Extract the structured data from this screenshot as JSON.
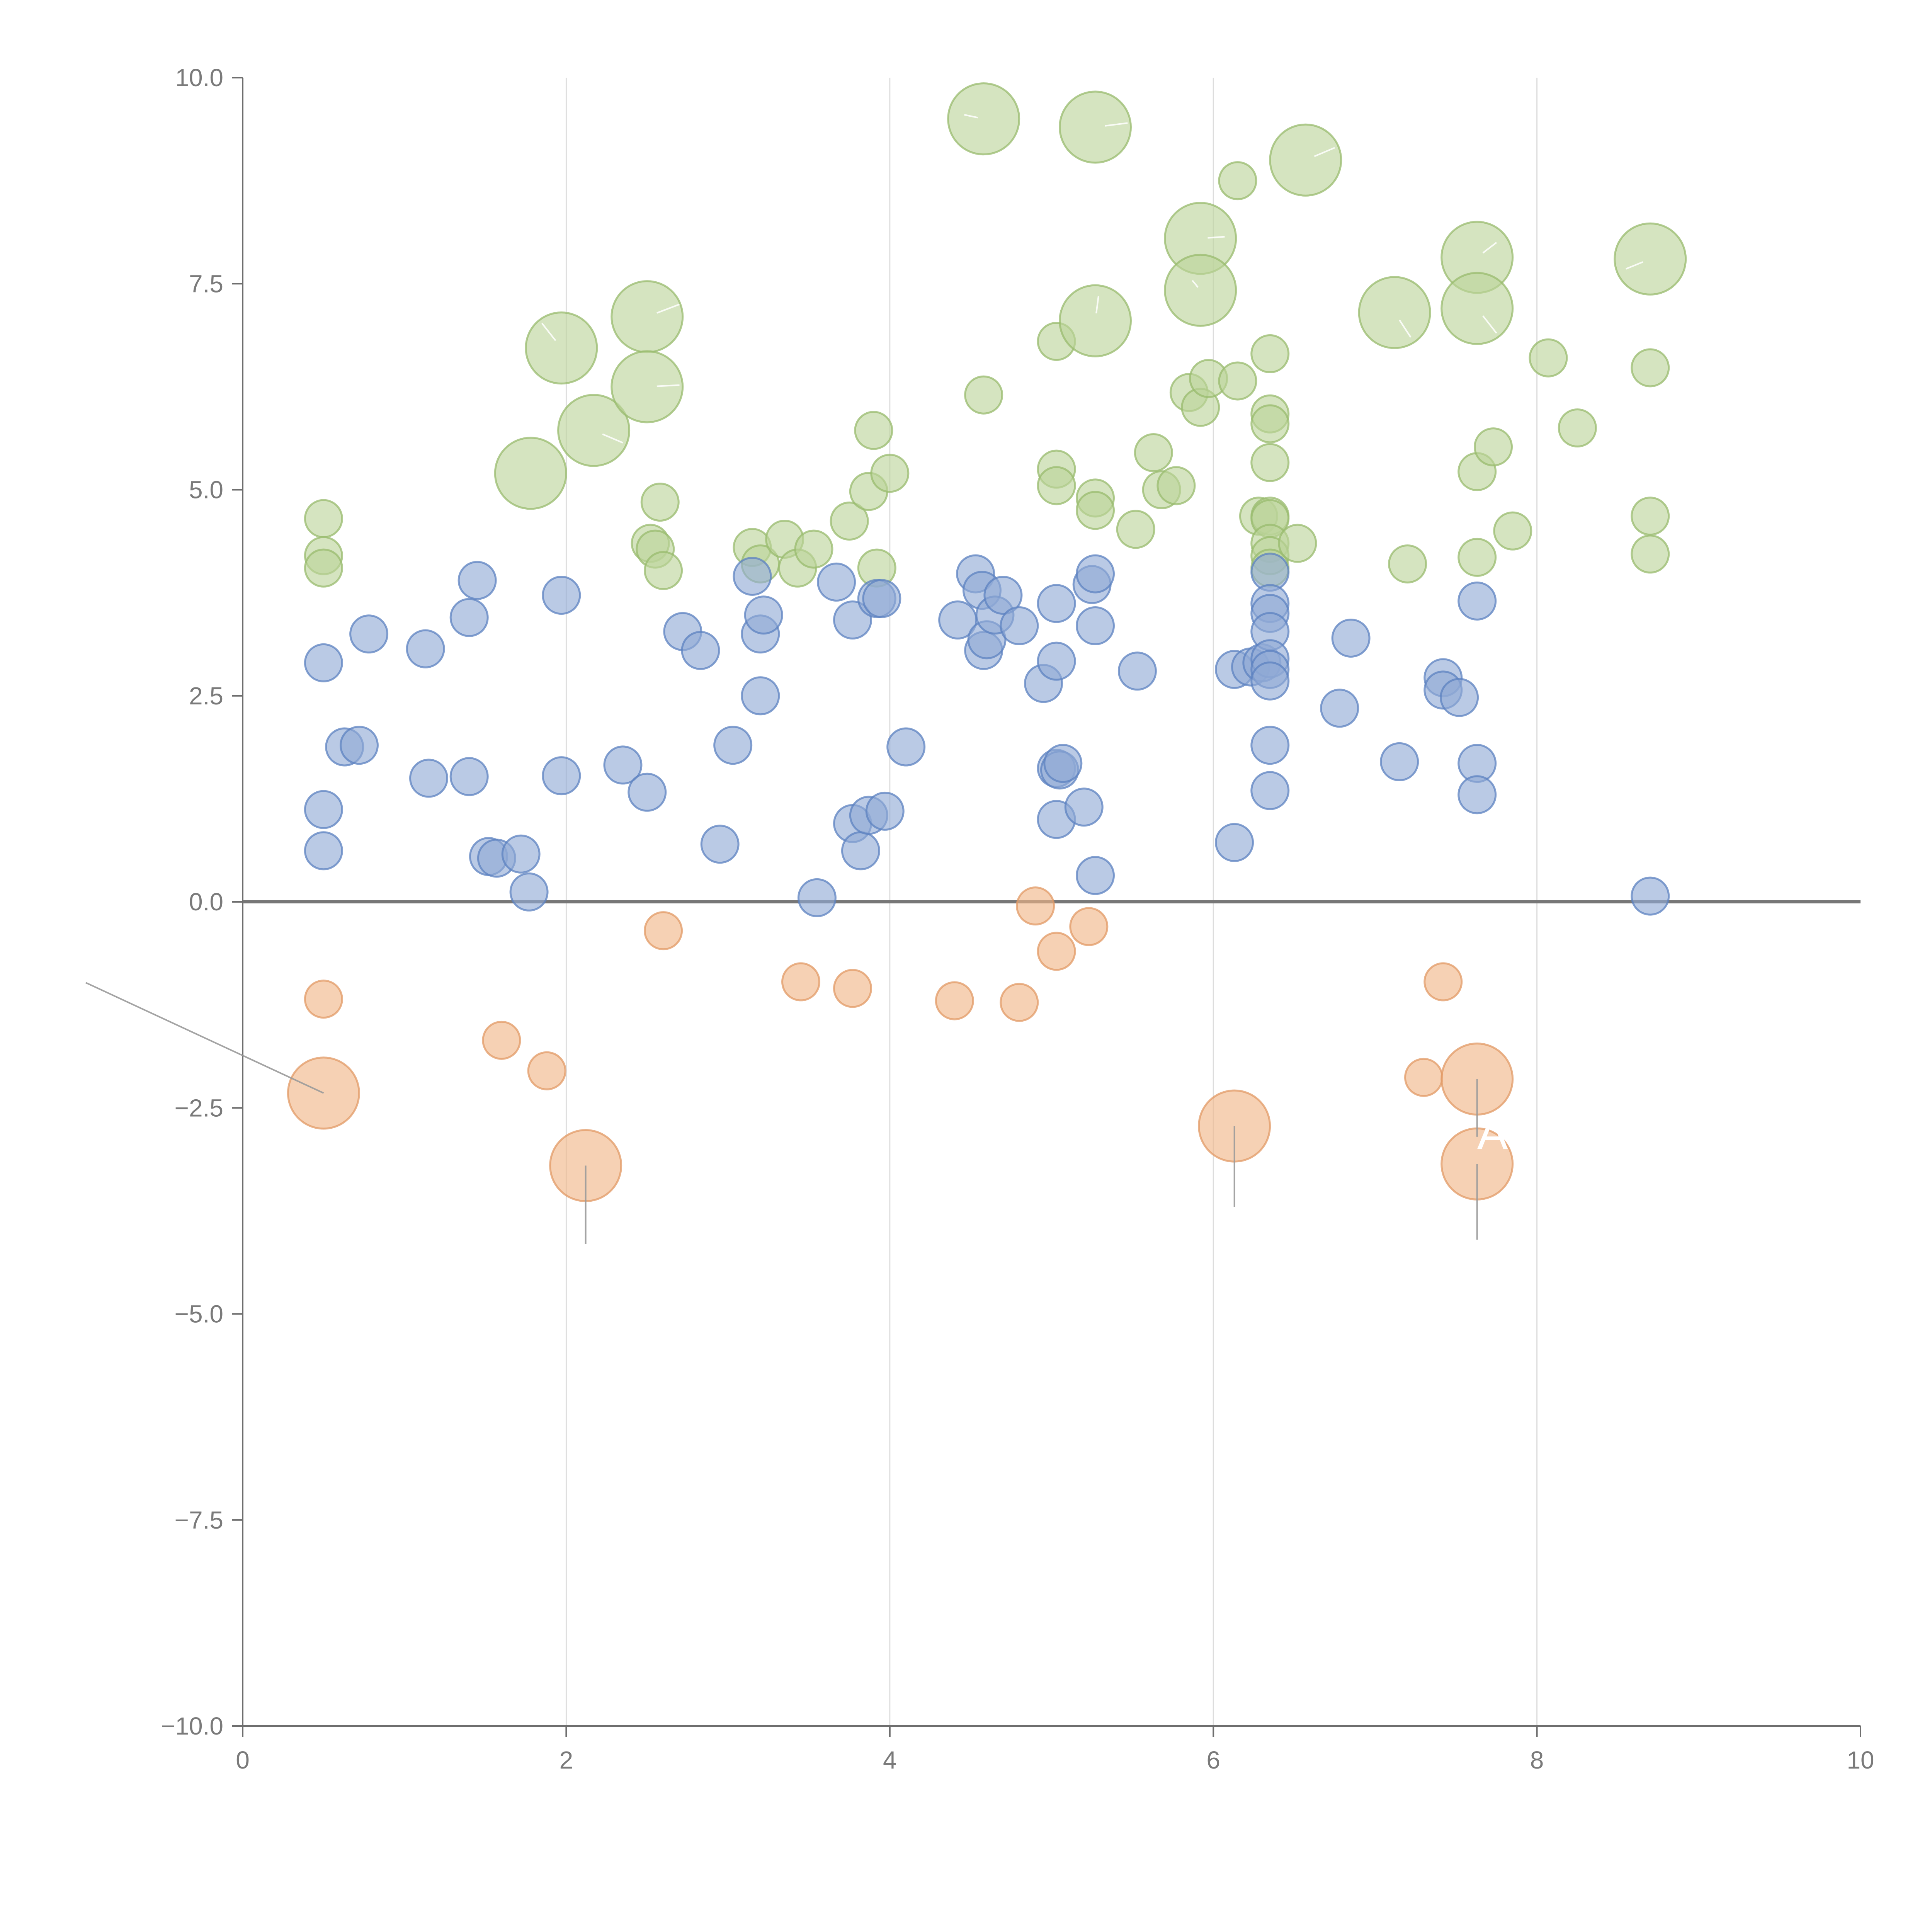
{
  "chart_data": {
    "type": "scatter",
    "title": "",
    "xlabel": "",
    "ylabel": "",
    "xlim": [
      0,
      10
    ],
    "ylim": [
      -10,
      10
    ],
    "x_ticks": [
      "0",
      "2",
      "4",
      "6",
      "8",
      "10"
    ],
    "y_ticks": [
      "10.0",
      "7.5",
      "5.0",
      "2.5",
      "0.0",
      "−2.5",
      "−5.0",
      "−7.5",
      "−10.0"
    ],
    "x_grid_at": [
      2,
      4,
      6,
      8
    ],
    "reference_line_y": 0,
    "legend": "none",
    "colors": {
      "green": "#bcd49a",
      "green_stroke": "#98bb6d",
      "blue": "#8fa9d5",
      "blue_stroke": "#5c81c0",
      "orange": "#f0b486",
      "orange_stroke": "#e19a66",
      "axis": "#6e6e6e",
      "grid": "#dddddd",
      "callout_light": "#ffffff",
      "callout_dark": "#9a9a9a"
    },
    "series": [
      {
        "color_key": "green",
        "points": [
          {
            "x": 0.5,
            "y": 4.65,
            "size": "s"
          },
          {
            "x": 0.5,
            "y": 4.2,
            "size": "s"
          },
          {
            "x": 0.5,
            "y": 4.05,
            "size": "s"
          },
          {
            "x": 1.78,
            "y": 5.2,
            "size": "l"
          },
          {
            "x": 1.97,
            "y": 6.72,
            "size": "l"
          },
          {
            "x": 2.17,
            "y": 5.72,
            "size": "l"
          },
          {
            "x": 2.5,
            "y": 7.1,
            "size": "l"
          },
          {
            "x": 2.5,
            "y": 6.25,
            "size": "l"
          },
          {
            "x": 2.52,
            "y": 4.35,
            "size": "s"
          },
          {
            "x": 2.55,
            "y": 4.28,
            "size": "s"
          },
          {
            "x": 2.58,
            "y": 4.85,
            "size": "s"
          },
          {
            "x": 2.6,
            "y": 4.02,
            "size": "s"
          },
          {
            "x": 3.15,
            "y": 4.3,
            "size": "s"
          },
          {
            "x": 3.2,
            "y": 4.1,
            "size": "s"
          },
          {
            "x": 3.35,
            "y": 4.4,
            "size": "s"
          },
          {
            "x": 3.43,
            "y": 4.05,
            "size": "s"
          },
          {
            "x": 3.53,
            "y": 4.28,
            "size": "s"
          },
          {
            "x": 3.75,
            "y": 4.62,
            "size": "s"
          },
          {
            "x": 3.87,
            "y": 4.98,
            "size": "s"
          },
          {
            "x": 3.9,
            "y": 5.72,
            "size": "s"
          },
          {
            "x": 3.92,
            "y": 4.05,
            "size": "s"
          },
          {
            "x": 4.0,
            "y": 5.2,
            "size": "s"
          },
          {
            "x": 4.58,
            "y": 9.5,
            "size": "l"
          },
          {
            "x": 4.58,
            "y": 6.15,
            "size": "s"
          },
          {
            "x": 5.03,
            "y": 6.8,
            "size": "s"
          },
          {
            "x": 5.03,
            "y": 5.25,
            "size": "s"
          },
          {
            "x": 5.03,
            "y": 5.05,
            "size": "s"
          },
          {
            "x": 5.27,
            "y": 9.4,
            "size": "l"
          },
          {
            "x": 5.27,
            "y": 7.05,
            "size": "l"
          },
          {
            "x": 5.27,
            "y": 4.9,
            "size": "s"
          },
          {
            "x": 5.27,
            "y": 4.75,
            "size": "s"
          },
          {
            "x": 5.52,
            "y": 4.52,
            "size": "s"
          },
          {
            "x": 5.63,
            "y": 5.45,
            "size": "s"
          },
          {
            "x": 5.68,
            "y": 5.0,
            "size": "s"
          },
          {
            "x": 5.77,
            "y": 5.05,
            "size": "s"
          },
          {
            "x": 5.85,
            "y": 6.18,
            "size": "s"
          },
          {
            "x": 5.92,
            "y": 8.05,
            "size": "l"
          },
          {
            "x": 5.92,
            "y": 7.42,
            "size": "l"
          },
          {
            "x": 5.92,
            "y": 6.0,
            "size": "s"
          },
          {
            "x": 5.97,
            "y": 6.35,
            "size": "s"
          },
          {
            "x": 6.15,
            "y": 8.75,
            "size": "s"
          },
          {
            "x": 6.15,
            "y": 6.32,
            "size": "s"
          },
          {
            "x": 6.28,
            "y": 4.68,
            "size": "s"
          },
          {
            "x": 6.35,
            "y": 6.65,
            "size": "s"
          },
          {
            "x": 6.35,
            "y": 5.92,
            "size": "s"
          },
          {
            "x": 6.35,
            "y": 5.8,
            "size": "s"
          },
          {
            "x": 6.35,
            "y": 5.33,
            "size": "s"
          },
          {
            "x": 6.35,
            "y": 4.68,
            "size": "s"
          },
          {
            "x": 6.35,
            "y": 4.65,
            "size": "s"
          },
          {
            "x": 6.35,
            "y": 4.35,
            "size": "s"
          },
          {
            "x": 6.35,
            "y": 4.2,
            "size": "s"
          },
          {
            "x": 6.35,
            "y": 4.05,
            "size": "s"
          },
          {
            "x": 6.52,
            "y": 4.35,
            "size": "s"
          },
          {
            "x": 6.57,
            "y": 9.0,
            "size": "l"
          },
          {
            "x": 7.12,
            "y": 7.15,
            "size": "l"
          },
          {
            "x": 7.2,
            "y": 4.1,
            "size": "s"
          },
          {
            "x": 7.63,
            "y": 7.82,
            "size": "l"
          },
          {
            "x": 7.63,
            "y": 7.2,
            "size": "l"
          },
          {
            "x": 7.63,
            "y": 5.22,
            "size": "s"
          },
          {
            "x": 7.63,
            "y": 4.18,
            "size": "s"
          },
          {
            "x": 7.73,
            "y": 5.52,
            "size": "s"
          },
          {
            "x": 7.85,
            "y": 4.5,
            "size": "s"
          },
          {
            "x": 8.07,
            "y": 6.6,
            "size": "s"
          },
          {
            "x": 8.25,
            "y": 5.75,
            "size": "s"
          },
          {
            "x": 8.7,
            "y": 7.8,
            "size": "l"
          },
          {
            "x": 8.7,
            "y": 6.48,
            "size": "s"
          },
          {
            "x": 8.7,
            "y": 4.68,
            "size": "s"
          },
          {
            "x": 8.7,
            "y": 4.22,
            "size": "s"
          }
        ]
      },
      {
        "color_key": "blue",
        "points": [
          {
            "x": 0.5,
            "y": 2.9
          },
          {
            "x": 0.5,
            "y": 1.12
          },
          {
            "x": 0.5,
            "y": 0.62
          },
          {
            "x": 0.63,
            "y": 1.88
          },
          {
            "x": 0.72,
            "y": 1.9
          },
          {
            "x": 0.78,
            "y": 3.25
          },
          {
            "x": 1.13,
            "y": 3.07
          },
          {
            "x": 1.15,
            "y": 1.5
          },
          {
            "x": 1.4,
            "y": 3.45
          },
          {
            "x": 1.4,
            "y": 1.52
          },
          {
            "x": 1.45,
            "y": 3.9
          },
          {
            "x": 1.52,
            "y": 0.55
          },
          {
            "x": 1.57,
            "y": 0.53
          },
          {
            "x": 1.72,
            "y": 0.58
          },
          {
            "x": 1.77,
            "y": 0.12
          },
          {
            "x": 1.97,
            "y": 3.72
          },
          {
            "x": 1.97,
            "y": 1.53
          },
          {
            "x": 2.35,
            "y": 1.66
          },
          {
            "x": 2.5,
            "y": 1.33
          },
          {
            "x": 2.72,
            "y": 3.28
          },
          {
            "x": 2.83,
            "y": 3.05
          },
          {
            "x": 2.95,
            "y": 0.7
          },
          {
            "x": 3.03,
            "y": 1.9
          },
          {
            "x": 3.15,
            "y": 3.95
          },
          {
            "x": 3.2,
            "y": 3.25
          },
          {
            "x": 3.2,
            "y": 2.5
          },
          {
            "x": 3.22,
            "y": 3.48
          },
          {
            "x": 3.55,
            "y": 0.05
          },
          {
            "x": 3.67,
            "y": 3.88
          },
          {
            "x": 3.77,
            "y": 3.42
          },
          {
            "x": 3.77,
            "y": 0.95
          },
          {
            "x": 3.82,
            "y": 0.62
          },
          {
            "x": 3.87,
            "y": 1.05
          },
          {
            "x": 3.92,
            "y": 3.68
          },
          {
            "x": 3.95,
            "y": 3.68
          },
          {
            "x": 3.97,
            "y": 1.1
          },
          {
            "x": 4.1,
            "y": 1.88
          },
          {
            "x": 4.42,
            "y": 3.42
          },
          {
            "x": 4.53,
            "y": 3.98
          },
          {
            "x": 4.57,
            "y": 3.78
          },
          {
            "x": 4.58,
            "y": 3.05
          },
          {
            "x": 4.6,
            "y": 3.18
          },
          {
            "x": 4.65,
            "y": 3.48
          },
          {
            "x": 4.7,
            "y": 3.72
          },
          {
            "x": 4.8,
            "y": 3.35
          },
          {
            "x": 4.95,
            "y": 2.65
          },
          {
            "x": 5.03,
            "y": 3.62
          },
          {
            "x": 5.03,
            "y": 2.92
          },
          {
            "x": 5.03,
            "y": 1.62
          },
          {
            "x": 5.05,
            "y": 1.6
          },
          {
            "x": 5.07,
            "y": 1.68
          },
          {
            "x": 5.03,
            "y": 1.0
          },
          {
            "x": 5.2,
            "y": 1.15
          },
          {
            "x": 5.25,
            "y": 3.85
          },
          {
            "x": 5.27,
            "y": 3.98
          },
          {
            "x": 5.27,
            "y": 3.35
          },
          {
            "x": 5.27,
            "y": 0.32
          },
          {
            "x": 5.53,
            "y": 2.8
          },
          {
            "x": 6.13,
            "y": 2.82
          },
          {
            "x": 6.13,
            "y": 0.72
          },
          {
            "x": 6.23,
            "y": 2.85
          },
          {
            "x": 6.3,
            "y": 2.9
          },
          {
            "x": 6.35,
            "y": 4.0
          },
          {
            "x": 6.35,
            "y": 3.62
          },
          {
            "x": 6.35,
            "y": 3.5
          },
          {
            "x": 6.35,
            "y": 3.28
          },
          {
            "x": 6.35,
            "y": 2.95
          },
          {
            "x": 6.35,
            "y": 2.82
          },
          {
            "x": 6.35,
            "y": 2.68
          },
          {
            "x": 6.35,
            "y": 1.9
          },
          {
            "x": 6.35,
            "y": 1.35
          },
          {
            "x": 6.78,
            "y": 2.35
          },
          {
            "x": 6.85,
            "y": 3.2
          },
          {
            "x": 7.15,
            "y": 1.7
          },
          {
            "x": 7.42,
            "y": 2.72
          },
          {
            "x": 7.42,
            "y": 2.57
          },
          {
            "x": 7.52,
            "y": 2.48
          },
          {
            "x": 7.63,
            "y": 3.65
          },
          {
            "x": 7.63,
            "y": 1.68
          },
          {
            "x": 7.63,
            "y": 1.3
          },
          {
            "x": 8.7,
            "y": 0.07
          }
        ]
      },
      {
        "color_key": "orange",
        "points": [
          {
            "x": 0.5,
            "y": -1.18,
            "size": "s"
          },
          {
            "x": 0.5,
            "y": -2.32,
            "size": "l"
          },
          {
            "x": 1.6,
            "y": -1.68,
            "size": "s"
          },
          {
            "x": 1.88,
            "y": -2.05,
            "size": "s"
          },
          {
            "x": 2.12,
            "y": -3.2,
            "size": "l"
          },
          {
            "x": 2.6,
            "y": -0.35,
            "size": "s"
          },
          {
            "x": 3.45,
            "y": -0.97,
            "size": "s"
          },
          {
            "x": 3.77,
            "y": -1.05,
            "size": "s"
          },
          {
            "x": 4.4,
            "y": -1.2,
            "size": "s"
          },
          {
            "x": 4.8,
            "y": -1.22,
            "size": "s"
          },
          {
            "x": 4.9,
            "y": -0.05,
            "size": "s"
          },
          {
            "x": 5.03,
            "y": -0.6,
            "size": "s"
          },
          {
            "x": 5.23,
            "y": -0.3,
            "size": "s"
          },
          {
            "x": 6.13,
            "y": -2.72,
            "size": "l"
          },
          {
            "x": 7.3,
            "y": -2.13,
            "size": "s"
          },
          {
            "x": 7.42,
            "y": -0.97,
            "size": "s"
          },
          {
            "x": 7.63,
            "y": -2.15,
            "size": "l"
          },
          {
            "x": 7.63,
            "y": -3.18,
            "size": "l"
          }
        ]
      }
    ],
    "annotations": [
      {
        "text": "A",
        "x": 7.63,
        "y": -3.0
      }
    ]
  }
}
